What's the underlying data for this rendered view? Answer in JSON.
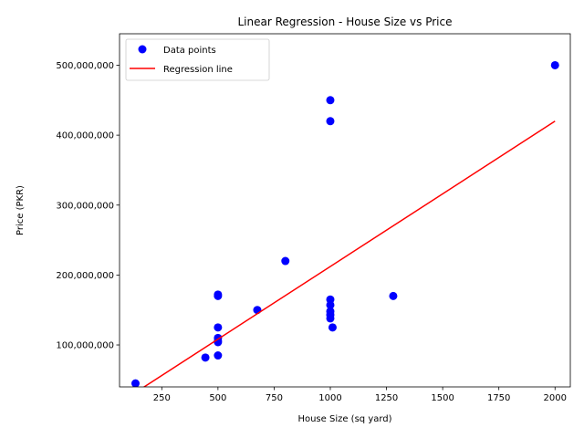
{
  "chart_data": {
    "type": "scatter",
    "title": "Linear Regression - House Size vs Price",
    "xlabel": "House Size (sq yard)",
    "ylabel": "Price (PKR)",
    "xlim": [
      62,
      2068
    ],
    "ylim": [
      40000000,
      545000000
    ],
    "x_ticks": [
      250,
      500,
      750,
      1000,
      1250,
      1500,
      1750,
      2000
    ],
    "x_tick_labels": [
      "250",
      "500",
      "750",
      "1000",
      "1250",
      "1500",
      "1750",
      "2000"
    ],
    "y_ticks": [
      100000000,
      200000000,
      300000000,
      400000000,
      500000000
    ],
    "y_tick_labels": [
      "100,000,000",
      "200,000,000",
      "300,000,000",
      "400,000,000",
      "500,000,000"
    ],
    "grid": false,
    "legend_position": "top-left",
    "series": [
      {
        "name": "Data points",
        "kind": "scatter",
        "color": "#0000ff",
        "points": [
          [
            133,
            45000000
          ],
          [
            444,
            82000000
          ],
          [
            500,
            85000000
          ],
          [
            500,
            104000000
          ],
          [
            500,
            106000000
          ],
          [
            500,
            110000000
          ],
          [
            500,
            125000000
          ],
          [
            500,
            170000000
          ],
          [
            500,
            172000000
          ],
          [
            675,
            150000000
          ],
          [
            800,
            220000000
          ],
          [
            1000,
            450000000
          ],
          [
            1000,
            420000000
          ],
          [
            1000,
            165000000
          ],
          [
            1000,
            157000000
          ],
          [
            1000,
            148000000
          ],
          [
            1000,
            143000000
          ],
          [
            1000,
            138000000
          ],
          [
            1010,
            125000000
          ],
          [
            1280,
            170000000
          ],
          [
            2000,
            500000000
          ]
        ]
      },
      {
        "name": "Regression line",
        "kind": "line",
        "color": "#ff0000",
        "points": [
          [
            133,
            32000000
          ],
          [
            2000,
            420000000
          ]
        ]
      }
    ]
  }
}
